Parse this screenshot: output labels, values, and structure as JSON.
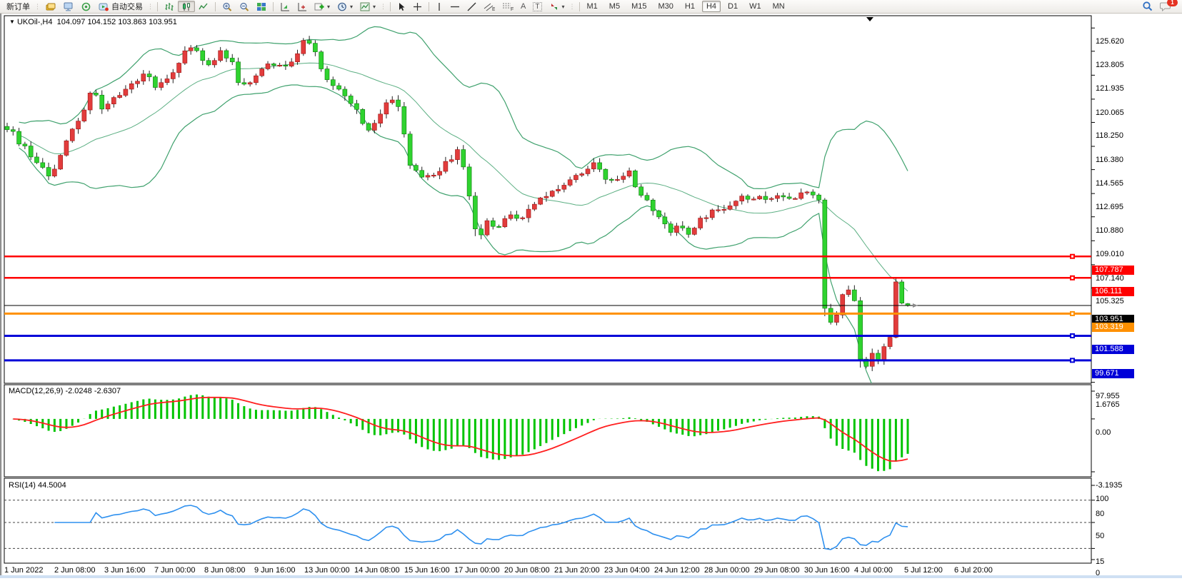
{
  "toolbar": {
    "new_order": "新订单",
    "autotrade": "自动交易",
    "timeframes": [
      "M1",
      "M5",
      "M15",
      "M30",
      "H1",
      "H4",
      "D1",
      "W1",
      "MN"
    ],
    "active_timeframe": "H4",
    "notification_badge": "1",
    "text_tool": "A",
    "label_tool": "T",
    "channel_letter": "E",
    "fibo_letter": "F"
  },
  "chart_header": {
    "symbol": "UKOil-,H4",
    "ohlc_text": "104.097 104.152 103.863 103.951",
    "expand_glyph": "▼"
  },
  "macd_panel": {
    "label": "MACD(12,26,9) -2.0248 -2.6307",
    "ticks": [
      "1.6765",
      "0.00",
      "-3.1935"
    ]
  },
  "rsi_panel": {
    "label": "RSI(14) 44.5004",
    "ticks": [
      "100",
      "80",
      "50",
      "15",
      "0"
    ]
  },
  "price_axis_ticks": [
    "125.620",
    "123.805",
    "121.935",
    "120.065",
    "118.250",
    "116.380",
    "114.565",
    "112.695",
    "110.880",
    "109.010",
    "107.140",
    "105.325",
    "97.955"
  ],
  "time_axis": [
    "1 Jun 2022",
    "2 Jun 08:00",
    "3 Jun 16:00",
    "7 Jun 00:00",
    "8 Jun 08:00",
    "9 Jun 16:00",
    "13 Jun 00:00",
    "14 Jun 08:00",
    "15 Jun 16:00",
    "17 Jun 00:00",
    "20 Jun 08:00",
    "21 Jun 20:00",
    "23 Jun 04:00",
    "24 Jun 12:00",
    "28 Jun 00:00",
    "29 Jun 08:00",
    "30 Jun 16:00",
    "4 Jul 00:00",
    "5 Jul 12:00",
    "6 Jul 20:00"
  ],
  "colors": {
    "up_candle": "#e23c3c",
    "up_stroke": "#9b1515",
    "down_candle": "#2fd32f",
    "down_stroke": "#0d7a0d",
    "wick": "#222222",
    "bollinger": "#3fa16d",
    "macd_hist": "#00c400",
    "macd_signal": "#ff1f1f",
    "rsi_line": "#2e90ef",
    "axis_line": "#000000"
  },
  "chart_data": {
    "type": "candlestick",
    "symbol": "UKOil-",
    "period": "H4",
    "last_ohlc": {
      "open": 104.097,
      "high": 104.152,
      "low": 103.863,
      "close": 103.951
    },
    "y_axis": {
      "top_price": 126.58,
      "bottom_price": 97.88
    },
    "candle_count": 153,
    "horizontal_levels": [
      {
        "label": "107.787",
        "price": 107.787,
        "color": "#ff0000",
        "width": 2.5,
        "badge": "#ff0000",
        "marker": true
      },
      {
        "label": "106.111",
        "price": 106.111,
        "color": "#ff0000",
        "width": 2.5,
        "badge": "#ff0000",
        "marker": true
      },
      {
        "label": "103.951",
        "price": 103.951,
        "color": "#000000",
        "width": 1,
        "badge": "#000000",
        "marker": false
      },
      {
        "label": "103.319",
        "price": 103.319,
        "color": "#ff9000",
        "width": 3,
        "badge": "#ff9000",
        "marker": true
      },
      {
        "label": "101.588",
        "price": 101.588,
        "color": "#0000d8",
        "width": 3,
        "badge": "#0000d8",
        "marker": true
      },
      {
        "label": "99.671",
        "price": 99.671,
        "color": "#0000d8",
        "width": 3,
        "badge": "#0000d8",
        "marker": true
      }
    ],
    "close_path_anchors": [
      [
        0.0,
        117.9
      ],
      [
        0.012,
        116.8
      ],
      [
        0.03,
        115.4
      ],
      [
        0.048,
        114.0
      ],
      [
        0.065,
        116.5
      ],
      [
        0.08,
        118.6
      ],
      [
        0.095,
        120.7
      ],
      [
        0.105,
        119.5
      ],
      [
        0.12,
        120.4
      ],
      [
        0.14,
        121.2
      ],
      [
        0.155,
        122.2
      ],
      [
        0.165,
        120.7
      ],
      [
        0.18,
        121.8
      ],
      [
        0.195,
        123.6
      ],
      [
        0.205,
        124.2
      ],
      [
        0.215,
        123.2
      ],
      [
        0.225,
        122.6
      ],
      [
        0.235,
        123.9
      ],
      [
        0.25,
        122.9
      ],
      [
        0.26,
        120.9
      ],
      [
        0.275,
        121.9
      ],
      [
        0.29,
        122.7
      ],
      [
        0.3,
        122.9
      ],
      [
        0.31,
        122.4
      ],
      [
        0.322,
        123.7
      ],
      [
        0.332,
        124.9
      ],
      [
        0.342,
        123.8
      ],
      [
        0.352,
        121.8
      ],
      [
        0.365,
        121.1
      ],
      [
        0.378,
        120.0
      ],
      [
        0.39,
        119.0
      ],
      [
        0.4,
        117.7
      ],
      [
        0.412,
        118.3
      ],
      [
        0.425,
        120.3
      ],
      [
        0.435,
        119.6
      ],
      [
        0.448,
        114.6
      ],
      [
        0.46,
        113.9
      ],
      [
        0.475,
        114.3
      ],
      [
        0.49,
        115.3
      ],
      [
        0.502,
        116.0
      ],
      [
        0.512,
        113.0
      ],
      [
        0.522,
        109.2
      ],
      [
        0.532,
        110.4
      ],
      [
        0.545,
        110.0
      ],
      [
        0.558,
        111.0
      ],
      [
        0.57,
        110.5
      ],
      [
        0.582,
        111.6
      ],
      [
        0.595,
        112.4
      ],
      [
        0.61,
        113.0
      ],
      [
        0.625,
        113.8
      ],
      [
        0.64,
        114.5
      ],
      [
        0.652,
        115.0
      ],
      [
        0.665,
        113.6
      ],
      [
        0.678,
        113.9
      ],
      [
        0.69,
        114.5
      ],
      [
        0.7,
        112.9
      ],
      [
        0.712,
        111.9
      ],
      [
        0.725,
        110.8
      ],
      [
        0.738,
        109.8
      ],
      [
        0.748,
        110.3
      ],
      [
        0.758,
        109.4
      ],
      [
        0.77,
        110.7
      ],
      [
        0.782,
        111.3
      ],
      [
        0.795,
        111.6
      ],
      [
        0.81,
        112.1
      ],
      [
        0.825,
        112.5
      ],
      [
        0.84,
        112.2
      ],
      [
        0.855,
        112.7
      ],
      [
        0.87,
        112.4
      ],
      [
        0.885,
        112.6
      ],
      [
        0.901,
        112.6
      ],
      [
        0.908,
        103.6
      ],
      [
        0.914,
        102.6
      ],
      [
        0.921,
        103.2
      ],
      [
        0.928,
        104.9
      ],
      [
        0.934,
        105.2
      ],
      [
        0.941,
        104.3
      ],
      [
        0.947,
        99.8
      ],
      [
        0.954,
        99.2
      ],
      [
        0.961,
        100.3
      ],
      [
        0.967,
        99.6
      ],
      [
        0.974,
        100.8
      ],
      [
        0.98,
        101.3
      ],
      [
        0.987,
        105.9
      ],
      [
        0.993,
        104.15
      ],
      [
        1.0,
        103.951
      ]
    ],
    "indicators": {
      "bollinger": {
        "period": 20,
        "deviation": 2
      },
      "macd": {
        "fast": 12,
        "slow": 26,
        "signal": 9,
        "value": -2.0248,
        "signal_value": -2.6307,
        "range": [
          -3.1935,
          1.6765
        ]
      },
      "rsi": {
        "period": 14,
        "value": 44.5004,
        "range": [
          0,
          100
        ],
        "dashed_levels": [
          80,
          50,
          15
        ]
      }
    }
  }
}
